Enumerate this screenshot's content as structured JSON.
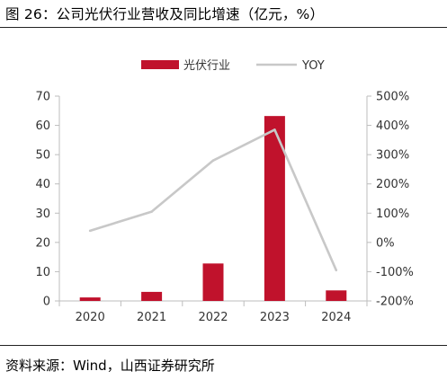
{
  "figure": {
    "title": "图 26：公司光伏行业营收及同比增速（亿元，%）",
    "source": "资料来源：Wind，山西证券研究所"
  },
  "colors": {
    "bar": "#c0122c",
    "line": "#c8c8c8",
    "axis": "#bdbdbd",
    "text": "#333333"
  },
  "chart_data": {
    "type": "bar",
    "categories": [
      "2020",
      "2021",
      "2022",
      "2023",
      "2024"
    ],
    "series": [
      {
        "name": "光伏行业",
        "type": "bar",
        "axis": "left",
        "values": [
          1.2,
          3.1,
          12.8,
          63.2,
          3.6
        ]
      },
      {
        "name": "YOY",
        "type": "line",
        "axis": "right",
        "values": [
          40,
          105,
          280,
          385,
          -95
        ]
      }
    ],
    "y_left": {
      "min": 0,
      "max": 70,
      "ticks": [
        0,
        10,
        20,
        30,
        40,
        50,
        60,
        70
      ]
    },
    "y_right": {
      "min": -200,
      "max": 500,
      "ticks": [
        -200,
        -100,
        0,
        100,
        200,
        300,
        400,
        500
      ],
      "tick_labels": [
        "-200%",
        "-100%",
        "0%",
        "100%",
        "200%",
        "300%",
        "400%",
        "500%"
      ]
    },
    "legend": {
      "position": "top-center",
      "entries": [
        "光伏行业",
        "YOY"
      ]
    },
    "grid": false
  }
}
